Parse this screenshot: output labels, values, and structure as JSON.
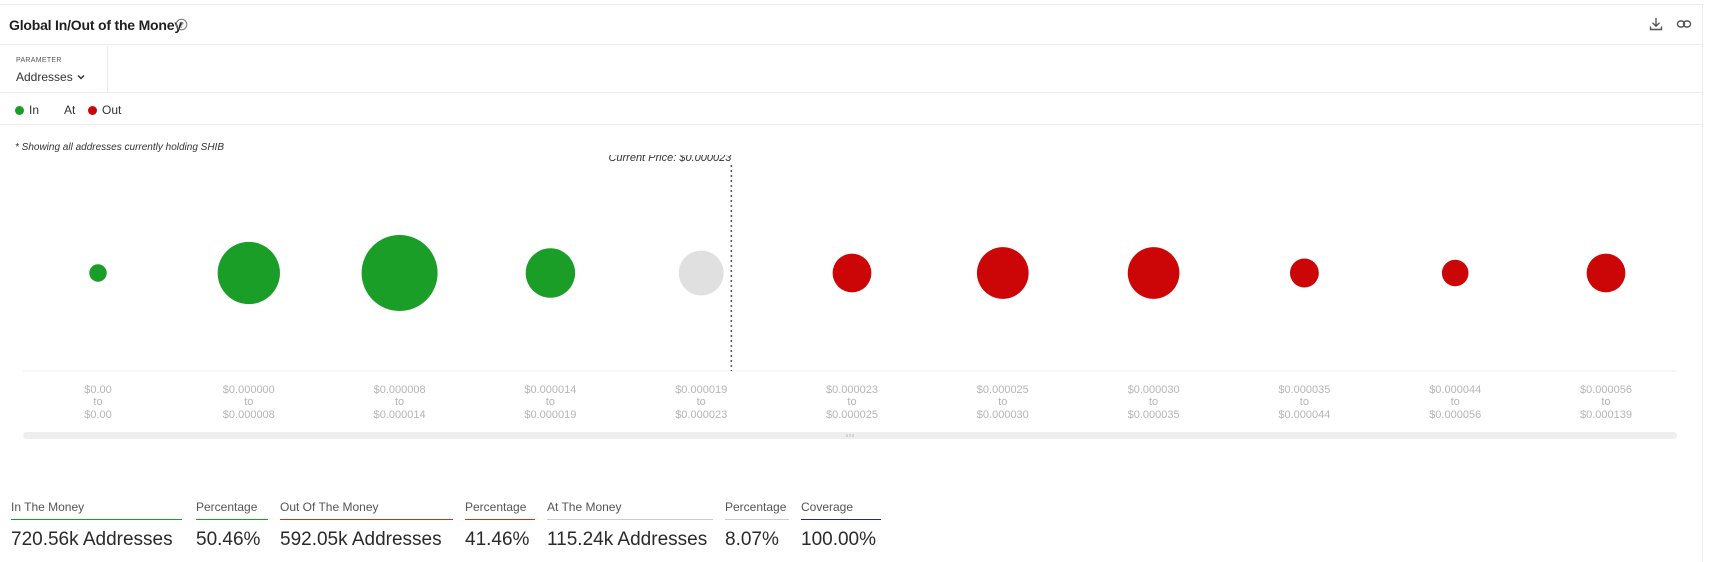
{
  "header": {
    "title": "Global In/Out of the Money",
    "help_icon": "question-circle-icon",
    "download_icon": "download-icon",
    "link_icon": "link-icon"
  },
  "parameter": {
    "label": "PARAMETER",
    "selected": "Addresses"
  },
  "legend": [
    {
      "label": "In",
      "color": "#1a9e28"
    },
    {
      "label": "At",
      "color": ""
    },
    {
      "label": "Out",
      "color": "#cc0606"
    }
  ],
  "note": "* Showing all addresses currently holding SHIB",
  "colors": {
    "in": "#1a9e28",
    "at": "#e0e0e0",
    "out": "#cc0606"
  },
  "chart_data": {
    "type": "bubble",
    "current_price_label": "Current Price: $0.000023",
    "bins": [
      {
        "from": "$0.00",
        "to": "$0.00",
        "status": "in",
        "relative_size": 0.23
      },
      {
        "from": "$0.000000",
        "to": "$0.000008",
        "status": "in",
        "relative_size": 0.82
      },
      {
        "from": "$0.000008",
        "to": "$0.000014",
        "status": "in",
        "relative_size": 1.0
      },
      {
        "from": "$0.000014",
        "to": "$0.000019",
        "status": "in",
        "relative_size": 0.65
      },
      {
        "from": "$0.000019",
        "to": "$0.000023",
        "status": "at",
        "relative_size": 0.59
      },
      {
        "from": "$0.000023",
        "to": "$0.000025",
        "status": "out",
        "relative_size": 0.51
      },
      {
        "from": "$0.000025",
        "to": "$0.000030",
        "status": "out",
        "relative_size": 0.68
      },
      {
        "from": "$0.000030",
        "to": "$0.000035",
        "status": "out",
        "relative_size": 0.68
      },
      {
        "from": "$0.000035",
        "to": "$0.000044",
        "status": "out",
        "relative_size": 0.38
      },
      {
        "from": "$0.000044",
        "to": "$0.000056",
        "status": "out",
        "relative_size": 0.35
      },
      {
        "from": "$0.000056",
        "to": "$0.000139",
        "status": "out",
        "relative_size": 0.51
      }
    ],
    "to_word": "to"
  },
  "stats": [
    {
      "label": "In The Money",
      "value": "720.56k Addresses",
      "underline": "#1a9e28"
    },
    {
      "label": "Percentage",
      "value": "50.46%",
      "underline": "#1a9e28"
    },
    {
      "label": "Out Of The Money",
      "value": "592.05k Addresses",
      "underline": "#c0391b"
    },
    {
      "label": "Percentage",
      "value": "41.46%",
      "underline": "#c0391b"
    },
    {
      "label": "At The Money",
      "value": "115.24k Addresses",
      "underline": "#cccccc"
    },
    {
      "label": "Percentage",
      "value": "8.07%",
      "underline": "#cccccc"
    },
    {
      "label": "Coverage",
      "value": "100.00%",
      "underline": "#1b2a8c"
    }
  ]
}
